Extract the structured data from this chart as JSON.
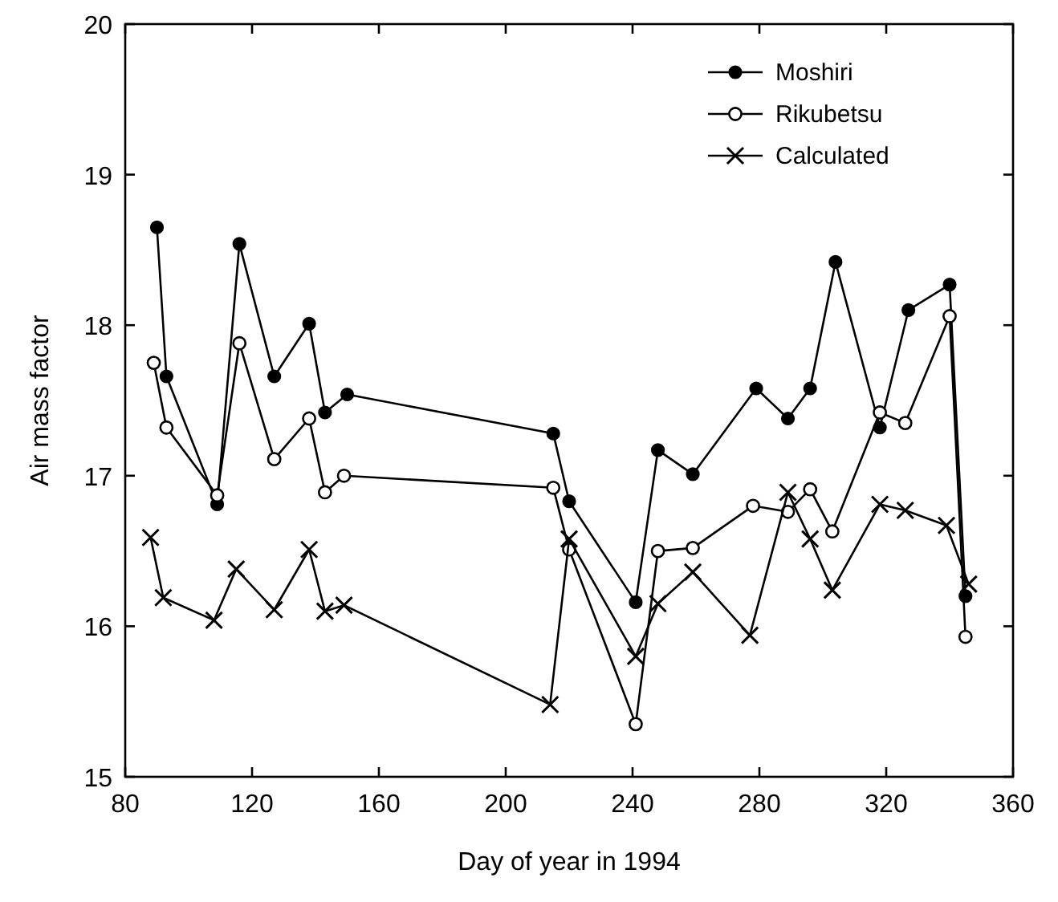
{
  "chart_data": {
    "type": "line",
    "xlabel": "Day of year in 1994",
    "ylabel": "Air mass factor",
    "xlim": [
      80,
      360
    ],
    "xticks": [
      80,
      120,
      160,
      200,
      240,
      280,
      320,
      360
    ],
    "ylim": [
      15,
      20
    ],
    "yticks": [
      15,
      16,
      17,
      18,
      19,
      20
    ],
    "grid": false,
    "legend": "top right",
    "line_style": "solid",
    "series": [
      {
        "name": "Moshiri",
        "color": "#000000",
        "marker": "circle",
        "x": [
          90,
          93,
          109,
          116,
          127,
          138,
          143,
          150,
          215,
          220,
          241,
          248,
          259,
          279,
          289,
          296,
          304,
          318,
          327,
          340,
          345
        ],
        "values": [
          18.65,
          17.66,
          16.81,
          18.54,
          17.66,
          18.01,
          17.42,
          17.54,
          17.28,
          16.83,
          16.16,
          17.17,
          17.01,
          17.58,
          17.38,
          17.58,
          18.42,
          17.32,
          18.1,
          18.27,
          16.2
        ]
      },
      {
        "name": "Rikubetsu",
        "color": "#000000",
        "marker": "open-circle",
        "x": [
          89,
          93,
          109,
          116,
          127,
          138,
          143,
          149,
          215,
          220,
          241,
          248,
          259,
          278,
          289,
          296,
          303,
          318,
          326,
          340,
          345
        ],
        "values": [
          17.75,
          17.32,
          16.87,
          17.88,
          17.11,
          17.38,
          16.89,
          17.0,
          16.92,
          16.51,
          15.35,
          16.5,
          16.52,
          16.8,
          16.76,
          16.91,
          16.63,
          17.42,
          17.35,
          18.06,
          15.93
        ]
      },
      {
        "name": "Calculated",
        "color": "#000000",
        "marker": "cross",
        "x": [
          88,
          92,
          108,
          115,
          127,
          138,
          143,
          149,
          214,
          220,
          241,
          248,
          259,
          277,
          289,
          296,
          303,
          318,
          326,
          339,
          346
        ],
        "values": [
          16.59,
          16.19,
          16.04,
          16.38,
          16.11,
          16.51,
          16.1,
          16.14,
          15.48,
          16.58,
          15.8,
          16.15,
          16.36,
          15.94,
          16.89,
          16.58,
          16.24,
          16.81,
          16.77,
          16.67,
          16.28
        ]
      }
    ]
  }
}
